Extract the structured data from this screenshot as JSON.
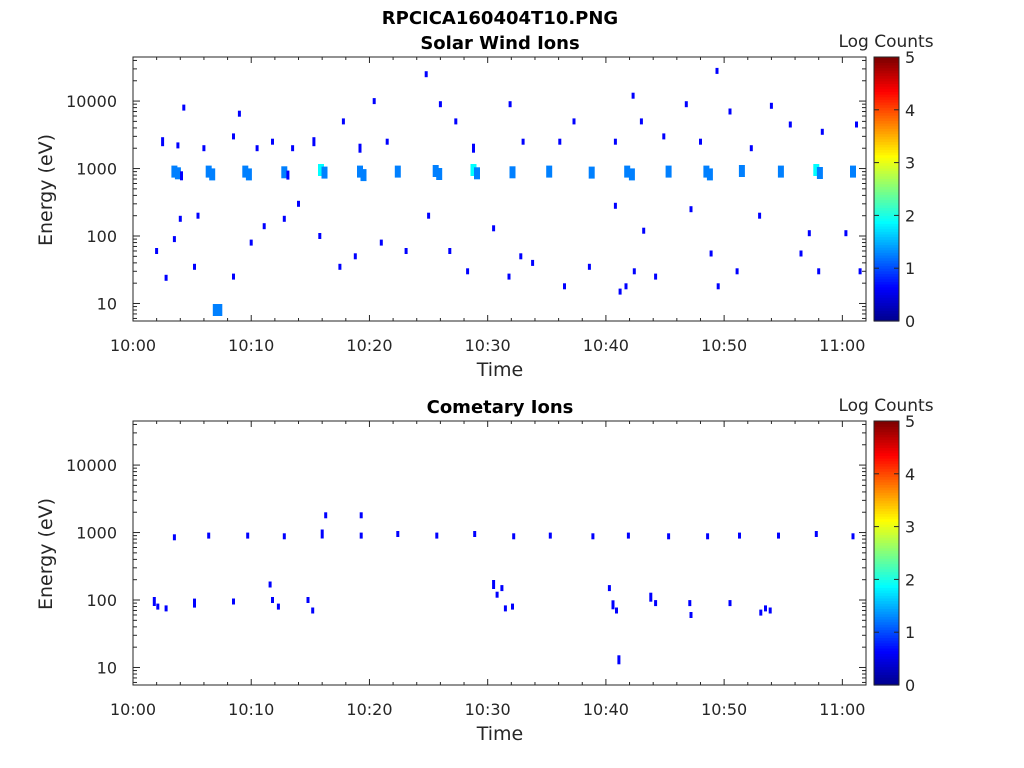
{
  "figure_title": "RPCICA160404T10.PNG",
  "colormap": [
    "#00008f",
    "#0000ff",
    "#0080ff",
    "#00ffff",
    "#80ff80",
    "#ffff00",
    "#ff8000",
    "#ff0000",
    "#800000"
  ],
  "chart_data": [
    {
      "type": "heatmap",
      "title": "Solar Wind Ions",
      "xlabel": "Time",
      "ylabel": "Energy (eV)",
      "colorbar_title": "Log Counts",
      "colorbar_ticks": [
        "0",
        "1",
        "2",
        "3",
        "4",
        "5"
      ],
      "clim": [
        0,
        5
      ],
      "yscale": "log",
      "ylim": [
        5.5,
        45000
      ],
      "xlim_minutes": [
        0,
        62
      ],
      "x_ticks": [
        "10:00",
        "10:10",
        "10:20",
        "10:30",
        "10:40",
        "10:50",
        "11:00"
      ],
      "y_ticks": [
        "10",
        "100",
        "1000",
        "10000"
      ],
      "points": [
        [
          3.5,
          900,
          1.5
        ],
        [
          3.8,
          850,
          1.3
        ],
        [
          4.1,
          780,
          0.9
        ],
        [
          6.4,
          900,
          1.3
        ],
        [
          6.7,
          820,
          1.0
        ],
        [
          9.5,
          900,
          1.5
        ],
        [
          9.8,
          820,
          1.2
        ],
        [
          12.8,
          880,
          1.2
        ],
        [
          13.1,
          800,
          0.9
        ],
        [
          15.9,
          950,
          1.6
        ],
        [
          16.2,
          870,
          1.5
        ],
        [
          19.2,
          900,
          1.5
        ],
        [
          19.5,
          800,
          1.1
        ],
        [
          22.4,
          900,
          1.4
        ],
        [
          25.6,
          920,
          1.3
        ],
        [
          25.9,
          830,
          1.0
        ],
        [
          28.8,
          950,
          1.6
        ],
        [
          29.1,
          850,
          1.4
        ],
        [
          32.1,
          880,
          1.1
        ],
        [
          35.2,
          900,
          1.2
        ],
        [
          38.8,
          870,
          1.0
        ],
        [
          41.8,
          900,
          1.2
        ],
        [
          42.2,
          820,
          1.0
        ],
        [
          45.3,
          900,
          1.2
        ],
        [
          48.5,
          900,
          1.4
        ],
        [
          48.8,
          820,
          1.2
        ],
        [
          51.5,
          920,
          1.3
        ],
        [
          54.8,
          900,
          1.1
        ],
        [
          57.8,
          950,
          1.6
        ],
        [
          58.1,
          860,
          1.4
        ],
        [
          60.9,
          900,
          1.3
        ],
        [
          2.5,
          2500,
          0.6
        ],
        [
          3.8,
          2200,
          0.5
        ],
        [
          4.3,
          8000,
          0.5
        ],
        [
          6.0,
          2000,
          0.5
        ],
        [
          8.5,
          3000,
          0.5
        ],
        [
          9.0,
          6500,
          0.5
        ],
        [
          10.5,
          2000,
          0.5
        ],
        [
          11.8,
          2500,
          0.5
        ],
        [
          13.5,
          2000,
          0.5
        ],
        [
          15.3,
          2500,
          0.6
        ],
        [
          17.8,
          5000,
          0.5
        ],
        [
          19.2,
          2000,
          0.6
        ],
        [
          20.4,
          10000,
          0.5
        ],
        [
          21.5,
          2500,
          0.5
        ],
        [
          24.8,
          25000,
          0.5
        ],
        [
          26.0,
          9000,
          0.5
        ],
        [
          27.3,
          5000,
          0.5
        ],
        [
          28.8,
          2000,
          0.6
        ],
        [
          31.9,
          9000,
          0.5
        ],
        [
          33.0,
          2500,
          0.5
        ],
        [
          36.1,
          2500,
          0.5
        ],
        [
          37.3,
          5000,
          0.5
        ],
        [
          40.8,
          2500,
          0.5
        ],
        [
          42.3,
          12000,
          0.5
        ],
        [
          43.0,
          5000,
          0.5
        ],
        [
          44.9,
          3000,
          0.5
        ],
        [
          46.8,
          9000,
          0.5
        ],
        [
          48.0,
          2500,
          0.5
        ],
        [
          49.4,
          28000,
          0.5
        ],
        [
          50.5,
          7000,
          0.5
        ],
        [
          52.3,
          2000,
          0.5
        ],
        [
          54.0,
          8500,
          0.5
        ],
        [
          55.6,
          4500,
          0.5
        ],
        [
          58.3,
          3500,
          0.5
        ],
        [
          61.2,
          4500,
          0.5
        ],
        [
          2.0,
          60,
          0.5
        ],
        [
          2.8,
          24,
          0.5
        ],
        [
          3.5,
          90,
          0.5
        ],
        [
          4.0,
          180,
          0.5
        ],
        [
          5.2,
          35,
          0.5
        ],
        [
          5.5,
          200,
          0.5
        ],
        [
          7.3,
          8,
          1.0
        ],
        [
          8.5,
          25,
          0.5
        ],
        [
          10.0,
          80,
          0.5
        ],
        [
          11.1,
          140,
          0.5
        ],
        [
          12.8,
          180,
          0.5
        ],
        [
          14.0,
          300,
          0.5
        ],
        [
          15.8,
          100,
          0.5
        ],
        [
          17.5,
          35,
          0.5
        ],
        [
          18.8,
          50,
          0.5
        ],
        [
          21.0,
          80,
          0.5
        ],
        [
          23.1,
          60,
          0.5
        ],
        [
          25.0,
          200,
          0.5
        ],
        [
          26.8,
          60,
          0.5
        ],
        [
          28.3,
          30,
          0.5
        ],
        [
          30.5,
          130,
          0.5
        ],
        [
          31.8,
          25,
          0.5
        ],
        [
          32.8,
          50,
          0.5
        ],
        [
          33.8,
          40,
          0.5
        ],
        [
          36.5,
          18,
          0.5
        ],
        [
          38.6,
          35,
          0.5
        ],
        [
          40.8,
          280,
          0.5
        ],
        [
          41.2,
          15,
          0.5
        ],
        [
          41.7,
          18,
          0.5
        ],
        [
          42.4,
          30,
          0.5
        ],
        [
          43.2,
          120,
          0.5
        ],
        [
          44.2,
          25,
          0.5
        ],
        [
          47.2,
          250,
          0.5
        ],
        [
          48.9,
          55,
          0.5
        ],
        [
          49.5,
          18,
          0.5
        ],
        [
          51.1,
          30,
          0.5
        ],
        [
          53.0,
          200,
          0.5
        ],
        [
          56.5,
          55,
          0.5
        ],
        [
          57.2,
          110,
          0.5
        ],
        [
          58.0,
          30,
          0.5
        ],
        [
          60.3,
          110,
          0.5
        ],
        [
          61.5,
          30,
          0.5
        ],
        [
          7.0,
          8,
          1.0
        ]
      ]
    },
    {
      "type": "heatmap",
      "title": "Cometary Ions",
      "xlabel": "Time",
      "ylabel": "Energy (eV)",
      "colorbar_title": "Log Counts",
      "colorbar_ticks": [
        "0",
        "1",
        "2",
        "3",
        "4",
        "5"
      ],
      "clim": [
        0,
        5
      ],
      "yscale": "log",
      "ylim": [
        5.5,
        45000
      ],
      "xlim_minutes": [
        0,
        62
      ],
      "x_ticks": [
        "10:00",
        "10:10",
        "10:20",
        "10:30",
        "10:40",
        "10:50",
        "11:00"
      ],
      "y_ticks": [
        "10",
        "100",
        "1000",
        "10000"
      ],
      "points": [
        [
          3.5,
          850,
          0.5
        ],
        [
          6.4,
          900,
          0.5
        ],
        [
          9.7,
          900,
          0.5
        ],
        [
          12.8,
          880,
          0.5
        ],
        [
          16.0,
          950,
          0.6
        ],
        [
          16.3,
          1800,
          0.5
        ],
        [
          19.3,
          900,
          0.5
        ],
        [
          19.3,
          1800,
          0.5
        ],
        [
          22.4,
          950,
          0.5
        ],
        [
          25.7,
          900,
          0.5
        ],
        [
          28.9,
          950,
          0.5
        ],
        [
          32.2,
          880,
          0.5
        ],
        [
          35.3,
          900,
          0.5
        ],
        [
          38.9,
          880,
          0.5
        ],
        [
          41.9,
          900,
          0.5
        ],
        [
          45.3,
          880,
          0.5
        ],
        [
          48.6,
          880,
          0.5
        ],
        [
          51.3,
          900,
          0.5
        ],
        [
          54.6,
          900,
          0.5
        ],
        [
          57.8,
          950,
          0.5
        ],
        [
          60.9,
          880,
          0.5
        ],
        [
          1.8,
          95,
          0.6
        ],
        [
          2.1,
          80,
          0.5
        ],
        [
          2.8,
          75,
          0.5
        ],
        [
          5.2,
          90,
          0.6
        ],
        [
          8.5,
          95,
          0.5
        ],
        [
          11.6,
          170,
          0.5
        ],
        [
          11.8,
          100,
          0.5
        ],
        [
          12.3,
          80,
          0.5
        ],
        [
          14.8,
          100,
          0.5
        ],
        [
          15.2,
          70,
          0.5
        ],
        [
          30.5,
          170,
          0.6
        ],
        [
          30.8,
          120,
          0.5
        ],
        [
          31.2,
          150,
          0.5
        ],
        [
          31.5,
          75,
          0.5
        ],
        [
          32.1,
          80,
          0.5
        ],
        [
          40.3,
          150,
          0.5
        ],
        [
          40.6,
          85,
          0.6
        ],
        [
          40.9,
          70,
          0.5
        ],
        [
          41.1,
          13,
          0.6
        ],
        [
          43.8,
          110,
          0.6
        ],
        [
          44.2,
          90,
          0.5
        ],
        [
          47.1,
          90,
          0.5
        ],
        [
          47.2,
          60,
          0.5
        ],
        [
          50.5,
          90,
          0.5
        ],
        [
          53.1,
          65,
          0.5
        ],
        [
          53.5,
          75,
          0.5
        ],
        [
          53.9,
          70,
          0.5
        ]
      ]
    }
  ]
}
